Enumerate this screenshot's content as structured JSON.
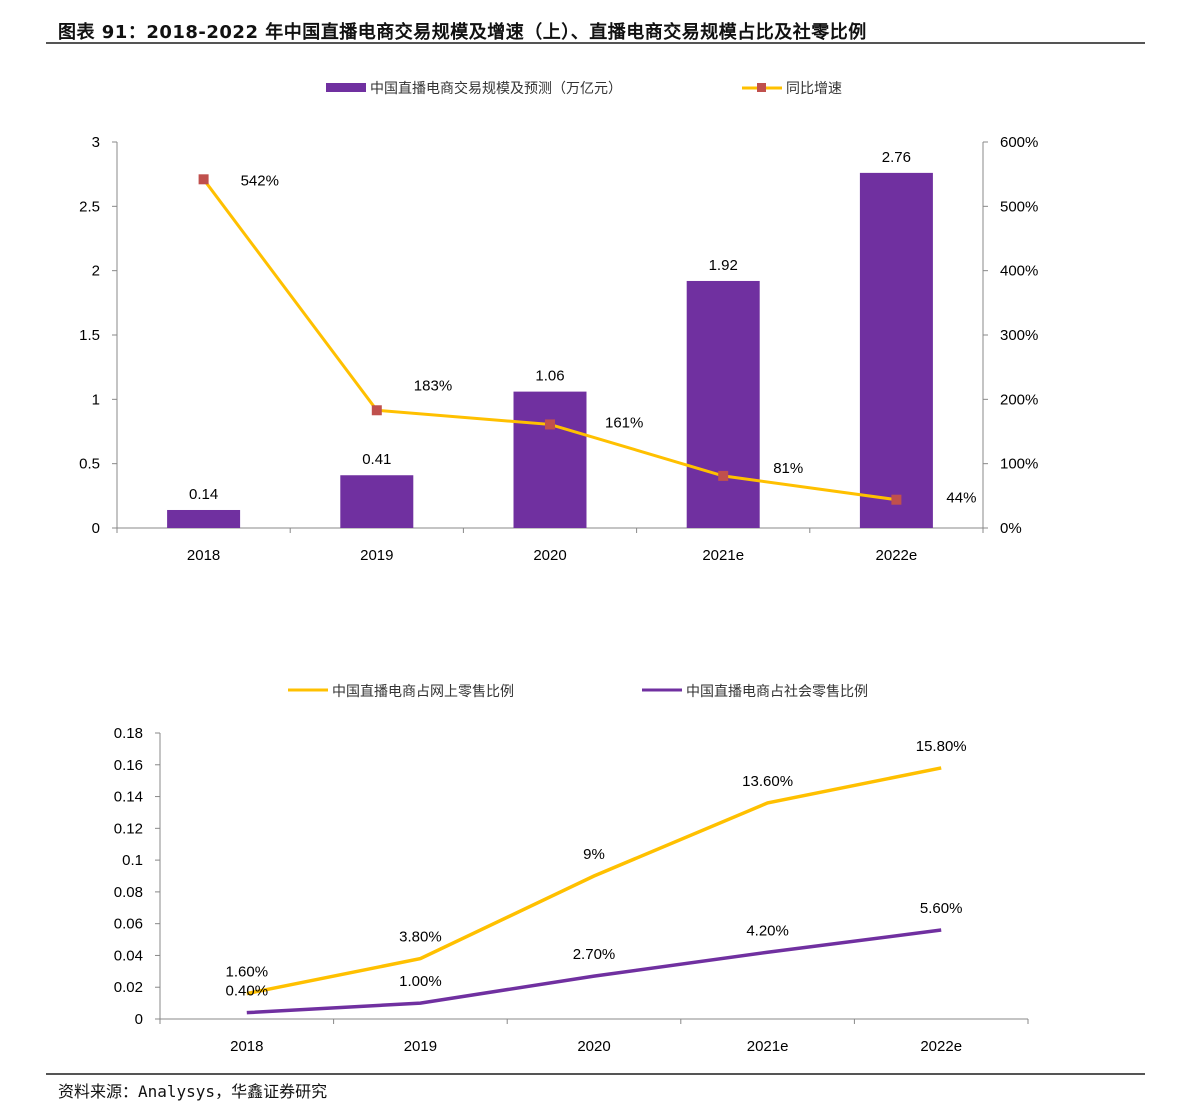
{
  "title": "图表 91：2018-2022 年中国直播电商交易规模及增速（上）、直播电商交易规模占比及社零比例",
  "source": "资料来源：Analysys，华鑫证券研究",
  "colors": {
    "purple": "#7030A0",
    "yellow": "#FFC000",
    "marker": "#C0504D"
  },
  "chart_data": [
    {
      "type": "bar+line",
      "categories": [
        "2018",
        "2019",
        "2020",
        "2021e",
        "2022e"
      ],
      "legend_placement": "top",
      "series": [
        {
          "name": "中国直播电商交易规模及预测（万亿元）",
          "type": "bar",
          "axis": "left",
          "values": [
            0.14,
            0.41,
            1.06,
            1.92,
            2.76
          ],
          "labels": [
            "0.14",
            "0.41",
            "1.06",
            "1.92",
            "2.76"
          ]
        },
        {
          "name": "同比增速",
          "type": "line",
          "axis": "right",
          "values": [
            542,
            183,
            161,
            81,
            44
          ],
          "labels": [
            "542%",
            "183%",
            "161%",
            "81%",
            "44%"
          ]
        }
      ],
      "left_axis": {
        "ylim": [
          0,
          3
        ],
        "ticks": [
          "0",
          "0.5",
          "1",
          "1.5",
          "2",
          "2.5",
          "3"
        ]
      },
      "right_axis": {
        "ylim": [
          0,
          600
        ],
        "ticks": [
          "0%",
          "100%",
          "200%",
          "300%",
          "400%",
          "500%",
          "600%"
        ]
      },
      "grid": false
    },
    {
      "type": "line",
      "categories": [
        "2018",
        "2019",
        "2020",
        "2021e",
        "2022e"
      ],
      "legend_placement": "top",
      "series": [
        {
          "name": "中国直播电商占网上零售比例",
          "values": [
            0.016,
            0.038,
            0.09,
            0.136,
            0.158
          ],
          "labels": [
            "1.60%",
            "3.80%",
            "9%",
            "13.60%",
            "15.80%"
          ]
        },
        {
          "name": "中国直播电商占社会零售比例",
          "values": [
            0.004,
            0.01,
            0.027,
            0.042,
            0.056
          ],
          "labels": [
            "0.40%",
            "1.00%",
            "2.70%",
            "4.20%",
            "5.60%"
          ]
        }
      ],
      "ylim": [
        0,
        0.18
      ],
      "ticks": [
        "0",
        "0.02",
        "0.04",
        "0.06",
        "0.08",
        "0.1",
        "0.12",
        "0.14",
        "0.16",
        "0.18"
      ],
      "grid": false
    }
  ]
}
